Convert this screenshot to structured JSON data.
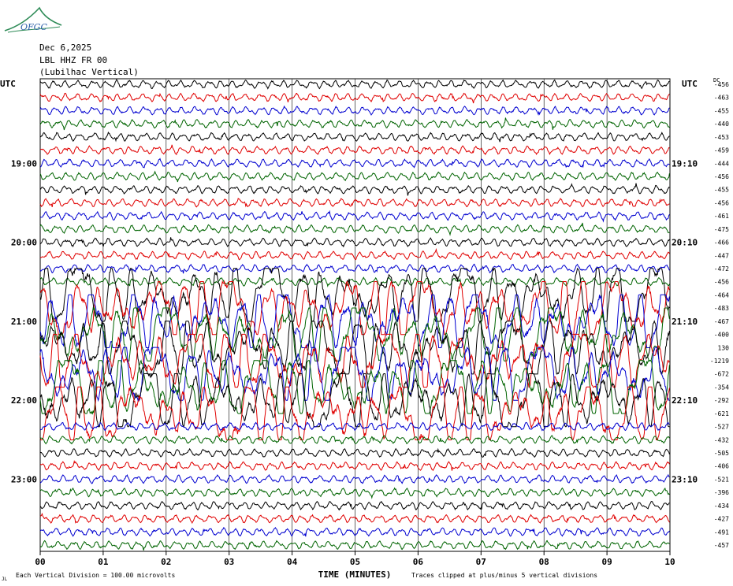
{
  "header": {
    "logo_text": "OFGC",
    "date": "Dec 6,2025",
    "station": "LBL HHZ FR 00",
    "location": "(Lubilhac Vertical)"
  },
  "axes": {
    "left_tz": "UTC",
    "right_tz": "UTC",
    "dc_label": "DC",
    "xlabel": "TIME (MINUTES)",
    "footer_scale": "Each Vertical Division =  100.00 microvolts",
    "footer_clip": "Traces clipped at plus/minus 5 vertical divisions",
    "footer_mark": "JL"
  },
  "chart_data": {
    "type": "line",
    "title": "LBL HHZ FR 00 (Lubilhac Vertical)",
    "xlabel": "TIME (MINUTES)",
    "x_ticks": [
      "00",
      "01",
      "02",
      "03",
      "04",
      "05",
      "06",
      "07",
      "08",
      "09",
      "10"
    ],
    "xlim": [
      0,
      10
    ],
    "left_hour_labels": [
      "19:00",
      "20:00",
      "21:00",
      "22:00",
      "23:00"
    ],
    "right_hour_labels": [
      "19:10",
      "20:10",
      "21:10",
      "22:10",
      "23:10"
    ],
    "trace_colors": [
      "#000000",
      "#e00000",
      "#0000d0",
      "#006400"
    ],
    "dc_offsets": [
      -456,
      -463,
      -455,
      -440,
      -453,
      -459,
      -444,
      -456,
      -455,
      -456,
      -461,
      -475,
      -466,
      -447,
      -472,
      -456,
      -464,
      -483,
      -467,
      -400,
      130,
      -1219,
      -672,
      -354,
      -292,
      -621,
      -527,
      -432,
      -505,
      -406,
      -521,
      -396,
      -434,
      -427,
      -491,
      -457
    ],
    "active_rows": [
      16,
      17,
      18,
      19,
      20,
      21,
      22,
      23,
      24,
      25
    ],
    "clip_divisions": 5,
    "scale_microvolts": 100.0,
    "grid": true
  }
}
